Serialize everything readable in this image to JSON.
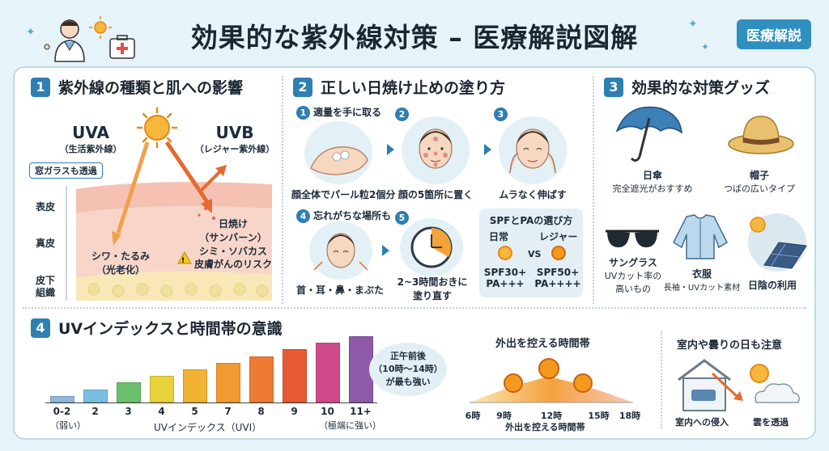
{
  "header": {
    "title": "効果的な紫外線対策 – 医療解説図解",
    "badge": "医療解説"
  },
  "colors": {
    "accent": "#2f7fb0",
    "uva_arrow": "#f0a24a",
    "uvb_arrow": "#e46a2e",
    "sun": "#f39a1e"
  },
  "section1": {
    "number": "1",
    "title": "紫外線の種類と肌への影響",
    "uva_label": "UVA",
    "uva_sub": "（生活紫外線）",
    "uvb_label": "UVB",
    "uvb_sub": "（レジャー紫外線）",
    "glass_note": "窓ガラスも透過",
    "layers": [
      "表皮",
      "真皮",
      "皮下",
      "組織"
    ],
    "uva_effect_1": "シワ・たるみ",
    "uva_effect_2": "（光老化）",
    "uvb_effect_1": "日焼け",
    "uvb_effect_2": "（サンバーン）",
    "uvb_effect_3": "シミ・ソバカス",
    "uvb_effect_4": "皮膚がんのリスク"
  },
  "section2": {
    "number": "2",
    "title": "正しい日焼け止めの塗り方",
    "steps": [
      {
        "num": "1",
        "title": "適量を手に取る",
        "caption": "顔全体でパール粒2個分"
      },
      {
        "num": "2",
        "title": "",
        "caption": "顔の5箇所に置く"
      },
      {
        "num": "3",
        "title": "",
        "caption": "ムラなく伸ばす"
      },
      {
        "num": "4",
        "title": "忘れがちな場所も",
        "caption": "首・耳・鼻・まぶた"
      },
      {
        "num": "5",
        "title": "",
        "caption_1": "2~3時間おきに",
        "caption_2": "塗り直す"
      }
    ],
    "spf_box": {
      "title": "SPFとPAの選び方",
      "daily": "日常",
      "leisure": "レジャー",
      "vs": "VS",
      "daily_spf": "SPF30+",
      "daily_pa": "PA+++",
      "leisure_spf": "SPF50+",
      "leisure_pa": "PA++++"
    }
  },
  "section3": {
    "number": "3",
    "title": "効果的な対策グッズ",
    "items": [
      {
        "name": "日傘",
        "desc": "完全遮光がおすすめ",
        "icon": "umbrella-icon"
      },
      {
        "name": "帽子",
        "desc": "つばの広いタイプ",
        "icon": "hat-icon"
      },
      {
        "name": "サングラス",
        "desc_1": "UVカット率の",
        "desc_2": "高いもの",
        "icon": "sunglasses-icon"
      },
      {
        "name": "衣服",
        "desc": "長袖・UVカット素材",
        "icon": "shirt-icon"
      },
      {
        "name": "日陰の利用",
        "icon": "shade-icon"
      }
    ]
  },
  "section4": {
    "number": "4",
    "title": "UVインデックスと時間帯の意識",
    "uv_chart": {
      "categories": [
        "0-2",
        "2",
        "3",
        "4",
        "5",
        "7",
        "8",
        "9",
        "10",
        "11+"
      ],
      "values": [
        1,
        2,
        3,
        4,
        5,
        6,
        7,
        8,
        9,
        10
      ],
      "colors": [
        "#8fb8df",
        "#78c0e0",
        "#6cbf6c",
        "#e8d23a",
        "#f2b233",
        "#f29a30",
        "#ee7a35",
        "#e65a35",
        "#d04a8a",
        "#8e5aa8"
      ],
      "low_note": "（弱い）",
      "high_note": "（極端に強い）",
      "xlabel": "UVインデックス（UVI）"
    },
    "bubble_1": "正午前後",
    "bubble_2": "（10時〜14時）",
    "bubble_3": "が最も強い",
    "time_title": "外出を控える時間帯",
    "time_ticks": [
      "6時",
      "9時",
      "12時",
      "15時",
      "18時"
    ],
    "time_caption": "外出を控える時間帯",
    "indoor_title": "室内や曇りの日も注意",
    "indoor_caption": "室内への侵入",
    "cloud_caption": "雲を透過"
  }
}
